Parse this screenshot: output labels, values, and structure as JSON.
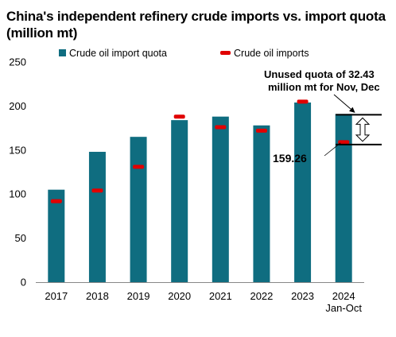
{
  "chart_data": {
    "type": "bar",
    "title": "China's independent refinery crude imports vs. import quota (million mt)",
    "categories": [
      "2017",
      "2018",
      "2019",
      "2020",
      "2021",
      "2022",
      "2023",
      "2024"
    ],
    "category_sublabels": [
      "",
      "",
      "",
      "",
      "",
      "",
      "",
      "Jan-Oct"
    ],
    "series": [
      {
        "name": "Crude oil import quota",
        "kind": "bar",
        "color": "#0f6d80",
        "values": [
          105,
          148,
          165,
          184,
          188,
          178,
          204,
          191
        ]
      },
      {
        "name": "Crude oil imports",
        "kind": "marker",
        "color": "#e00000",
        "values": [
          92,
          104,
          131,
          188,
          176,
          172,
          205,
          159
        ]
      }
    ],
    "ylim": [
      0,
      250
    ],
    "yticks": [
      0,
      50,
      100,
      150,
      200,
      250
    ],
    "grid": false,
    "legend_position": "top",
    "annotation": {
      "text_line1": "Unused quota of 32.43",
      "text_line2": "million mt for Nov, Dec",
      "upper_value": 191,
      "lower_value": 159
    },
    "data_label": {
      "text": "159.26",
      "category": "2024"
    }
  }
}
